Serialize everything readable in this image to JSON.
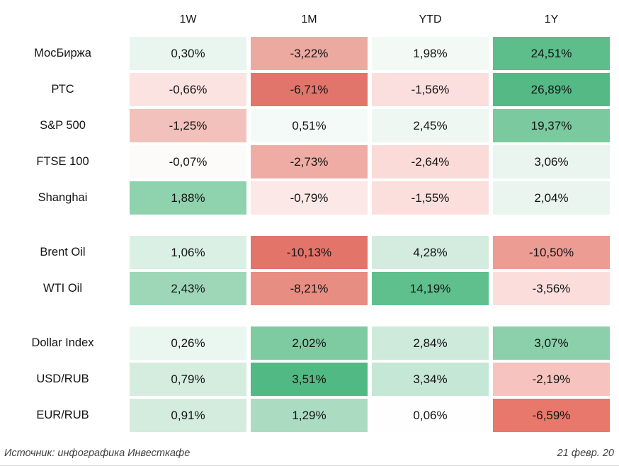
{
  "header": {
    "columns": [
      "1W",
      "1M",
      "YTD",
      "1Y"
    ]
  },
  "groups": [
    {
      "name": "equity-indices",
      "rows": [
        {
          "label": "МосБиржа",
          "cells": [
            {
              "text": "0,30%",
              "bg": "#e9f6ef"
            },
            {
              "text": "-3,22%",
              "bg": "#eca9a0"
            },
            {
              "text": "1,98%",
              "bg": "#f3faf6"
            },
            {
              "text": "24,51%",
              "bg": "#5dbe8b"
            }
          ]
        },
        {
          "label": "РТС",
          "cells": [
            {
              "text": "-0,66%",
              "bg": "#fbe3e2"
            },
            {
              "text": "-6,71%",
              "bg": "#e2756b"
            },
            {
              "text": "-1,56%",
              "bg": "#fbdfde"
            },
            {
              "text": "26,89%",
              "bg": "#54b985"
            }
          ]
        },
        {
          "label": "S&P 500",
          "cells": [
            {
              "text": "-1,25%",
              "bg": "#f2c1bb"
            },
            {
              "text": "0,51%",
              "bg": "#f4faf7"
            },
            {
              "text": "2,45%",
              "bg": "#eef7f2"
            },
            {
              "text": "19,37%",
              "bg": "#7bc99e"
            }
          ]
        },
        {
          "label": "FTSE 100",
          "cells": [
            {
              "text": "-0,07%",
              "bg": "#fdfbfa"
            },
            {
              "text": "-2,73%",
              "bg": "#eeaca4"
            },
            {
              "text": "-2,64%",
              "bg": "#fadbd8"
            },
            {
              "text": "3,06%",
              "bg": "#e9f5ee"
            }
          ]
        },
        {
          "label": "Shanghai",
          "cells": [
            {
              "text": "1,88%",
              "bg": "#8fd2ae"
            },
            {
              "text": "-0,79%",
              "bg": "#fce8e7"
            },
            {
              "text": "-1,55%",
              "bg": "#fbdfdd"
            },
            {
              "text": "2,04%",
              "bg": "#e9f5ee"
            }
          ]
        }
      ]
    },
    {
      "name": "commodities",
      "rows": [
        {
          "label": "Brent Oil",
          "cells": [
            {
              "text": "1,06%",
              "bg": "#daf0e4"
            },
            {
              "text": "-10,13%",
              "bg": "#e2746a"
            },
            {
              "text": "4,28%",
              "bg": "#d3ecdf"
            },
            {
              "text": "-10,50%",
              "bg": "#ec9c93"
            }
          ]
        },
        {
          "label": "WTI Oil",
          "cells": [
            {
              "text": "2,43%",
              "bg": "#9dd7b8"
            },
            {
              "text": "-8,21%",
              "bg": "#e88d82"
            },
            {
              "text": "14,19%",
              "bg": "#5fc08e"
            },
            {
              "text": "-3,56%",
              "bg": "#fbdedc"
            }
          ]
        }
      ]
    },
    {
      "name": "currencies",
      "rows": [
        {
          "label": "Dollar Index",
          "cells": [
            {
              "text": "0,26%",
              "bg": "#eaf6f0"
            },
            {
              "text": "2,02%",
              "bg": "#7ecba1"
            },
            {
              "text": "2,84%",
              "bg": "#cdeadb"
            },
            {
              "text": "3,07%",
              "bg": "#8bd0ab"
            }
          ]
        },
        {
          "label": "USD/RUB",
          "cells": [
            {
              "text": "0,79%",
              "bg": "#d5edde"
            },
            {
              "text": "3,51%",
              "bg": "#51b983"
            },
            {
              "text": "3,34%",
              "bg": "#c5e7d5"
            },
            {
              "text": "-2,19%",
              "bg": "#f6c3be"
            }
          ]
        },
        {
          "label": "EUR/RUB",
          "cells": [
            {
              "text": "0,91%",
              "bg": "#d3ecde"
            },
            {
              "text": "1,29%",
              "bg": "#abdcc2"
            },
            {
              "text": "0,06%",
              "bg": "#fdfefd"
            },
            {
              "text": "-6,59%",
              "bg": "#e8776c"
            }
          ]
        }
      ]
    }
  ],
  "footer": {
    "source": "Источник: инфографика Инвесткафе",
    "date": "21 февр. 20"
  },
  "chart_data": {
    "type": "heatmap",
    "title": "",
    "columns": [
      "1W",
      "1M",
      "YTD",
      "1Y"
    ],
    "rows": [
      "МосБиржа",
      "РТС",
      "S&P 500",
      "FTSE 100",
      "Shanghai",
      "Brent Oil",
      "WTI Oil",
      "Dollar Index",
      "USD/RUB",
      "EUR/RUB"
    ],
    "row_groups": [
      [
        "МосБиржа",
        "РТС",
        "S&P 500",
        "FTSE 100",
        "Shanghai"
      ],
      [
        "Brent Oil",
        "WTI Oil"
      ],
      [
        "Dollar Index",
        "USD/RUB",
        "EUR/RUB"
      ]
    ],
    "values_percent": [
      [
        0.3,
        -3.22,
        1.98,
        24.51
      ],
      [
        -0.66,
        -6.71,
        -1.56,
        26.89
      ],
      [
        -1.25,
        0.51,
        2.45,
        19.37
      ],
      [
        -0.07,
        -2.73,
        -2.64,
        3.06
      ],
      [
        1.88,
        -0.79,
        -1.55,
        2.04
      ],
      [
        1.06,
        -10.13,
        4.28,
        -10.5
      ],
      [
        2.43,
        -8.21,
        14.19,
        -3.56
      ],
      [
        0.26,
        2.02,
        2.84,
        3.07
      ],
      [
        0.79,
        3.51,
        3.34,
        -2.19
      ],
      [
        0.91,
        1.29,
        0.06,
        -6.59
      ]
    ],
    "colormap": "red-white-green",
    "negative_color": "#e2756b",
    "positive_color": "#54b985",
    "legend_position": "none",
    "grid": false
  }
}
